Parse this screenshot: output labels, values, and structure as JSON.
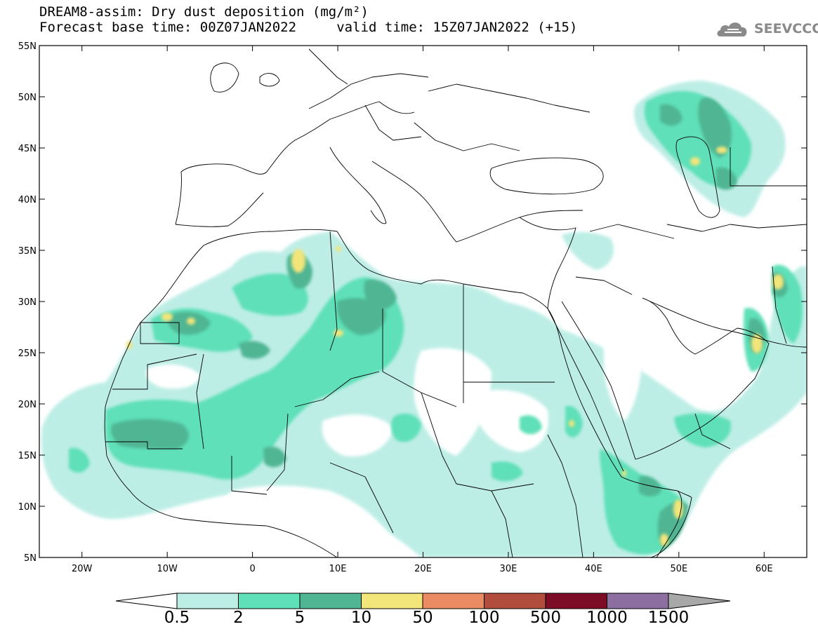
{
  "title": {
    "line1": "DREAM8-assim: Dry dust deposition (mg/m²)",
    "line2": "Forecast base time: 00Z07JAN2022     valid time: 15Z07JAN2022 (+15)"
  },
  "logo": {
    "text": "SEEVCCC",
    "icon": "cloud-logo-icon"
  },
  "map": {
    "region": "North Africa, Europe and Middle East",
    "lon_range": [
      -25,
      65
    ],
    "lat_range": [
      5,
      55
    ],
    "lat_ticks": [
      "55N",
      "50N",
      "45N",
      "40N",
      "35N",
      "30N",
      "25N",
      "20N",
      "15N",
      "10N",
      "5N"
    ],
    "lon_ticks": [
      "20W",
      "10W",
      "0",
      "10E",
      "20E",
      "30E",
      "40E",
      "50E",
      "60E"
    ]
  },
  "colorbar": {
    "labels": [
      "0.5",
      "2",
      "5",
      "10",
      "50",
      "100",
      "500",
      "1000",
      "1500"
    ],
    "colors": [
      "#ffffff",
      "#bdeee6",
      "#5fe0b8",
      "#4fb593",
      "#f2e57a",
      "#eb8b63",
      "#b14d3c",
      "#7d0d26",
      "#8d6ea0",
      "#a8a8a8"
    ]
  }
}
